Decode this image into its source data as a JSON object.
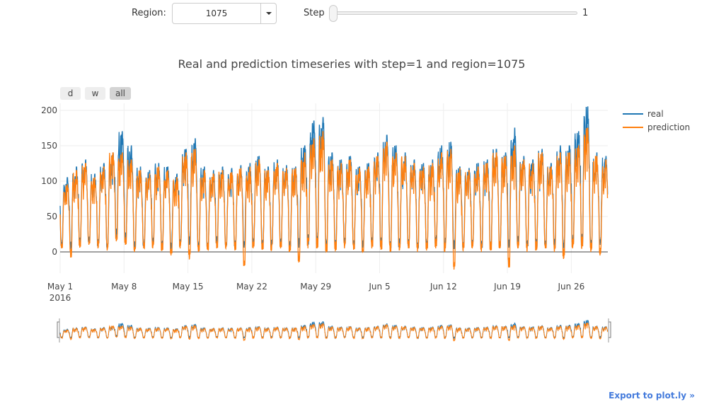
{
  "controls": {
    "region_label": "Region:",
    "region_value": "1075",
    "step_label": "Step",
    "step_value": "1"
  },
  "range_selector": {
    "buttons": [
      "d",
      "w",
      "all"
    ],
    "active": "all"
  },
  "export_link": "Export to plot.ly »",
  "colors": {
    "real": "#1f77b4",
    "prediction": "#ff7f0e",
    "grid": "#eeeeee",
    "zero_line": "#444444"
  },
  "chart_data": {
    "type": "line",
    "title": "Real and prediction timeseries with step=1 and region=1075",
    "x_range": [
      "2016-05-01",
      "2016-06-30"
    ],
    "ylim": [
      -30,
      210
    ],
    "y_ticks": [
      0,
      50,
      100,
      150,
      200
    ],
    "x_ticks": [
      {
        "date": "2016-05-01",
        "label": "May 1",
        "sublabel": "2016"
      },
      {
        "date": "2016-05-08",
        "label": "May 8"
      },
      {
        "date": "2016-05-15",
        "label": "May 15"
      },
      {
        "date": "2016-05-22",
        "label": "May 22"
      },
      {
        "date": "2016-05-29",
        "label": "May 29"
      },
      {
        "date": "2016-06-05",
        "label": "Jun 5"
      },
      {
        "date": "2016-06-12",
        "label": "Jun 12"
      },
      {
        "date": "2016-06-19",
        "label": "Jun 19"
      },
      {
        "date": "2016-06-26",
        "label": "Jun 26"
      }
    ],
    "legend_position": "top-right",
    "grid": true,
    "series": [
      {
        "name": "real",
        "color": "#1f77b4"
      },
      {
        "name": "prediction",
        "color": "#ff7f0e"
      }
    ],
    "daily_values": {
      "dates": [
        "2016-05-01",
        "2016-05-02",
        "2016-05-03",
        "2016-05-04",
        "2016-05-05",
        "2016-05-06",
        "2016-05-07",
        "2016-05-08",
        "2016-05-09",
        "2016-05-10",
        "2016-05-11",
        "2016-05-12",
        "2016-05-13",
        "2016-05-14",
        "2016-05-15",
        "2016-05-16",
        "2016-05-17",
        "2016-05-18",
        "2016-05-19",
        "2016-05-20",
        "2016-05-21",
        "2016-05-22",
        "2016-05-23",
        "2016-05-24",
        "2016-05-25",
        "2016-05-26",
        "2016-05-27",
        "2016-05-28",
        "2016-05-29",
        "2016-05-30",
        "2016-05-31",
        "2016-06-01",
        "2016-06-02",
        "2016-06-03",
        "2016-06-04",
        "2016-06-05",
        "2016-06-06",
        "2016-06-07",
        "2016-06-08",
        "2016-06-09",
        "2016-06-10",
        "2016-06-11",
        "2016-06-12",
        "2016-06-13",
        "2016-06-14",
        "2016-06-15",
        "2016-06-16",
        "2016-06-17",
        "2016-06-18",
        "2016-06-19",
        "2016-06-20",
        "2016-06-21",
        "2016-06-22",
        "2016-06-23",
        "2016-06-24",
        "2016-06-25",
        "2016-06-26",
        "2016-06-27",
        "2016-06-28",
        "2016-06-29"
      ],
      "real_min": [
        8,
        5,
        10,
        12,
        8,
        5,
        20,
        15,
        5,
        8,
        10,
        6,
        4,
        8,
        10,
        5,
        6,
        12,
        8,
        5,
        6,
        10,
        8,
        6,
        8,
        5,
        6,
        8,
        10,
        6,
        5,
        12,
        8,
        6,
        10,
        8,
        5,
        6,
        8,
        5,
        6,
        10,
        5,
        4,
        6,
        8,
        5,
        6,
        8,
        6,
        10,
        5,
        6,
        8,
        5,
        6,
        10,
        8,
        6,
        10
      ],
      "real_max": [
        105,
        120,
        130,
        110,
        125,
        140,
        170,
        150,
        120,
        115,
        125,
        120,
        110,
        145,
        160,
        120,
        115,
        120,
        118,
        122,
        125,
        135,
        120,
        130,
        122,
        120,
        150,
        185,
        190,
        140,
        130,
        135,
        120,
        125,
        140,
        165,
        150,
        140,
        130,
        125,
        130,
        150,
        155,
        120,
        118,
        125,
        130,
        145,
        140,
        175,
        135,
        130,
        145,
        125,
        150,
        150,
        170,
        205,
        140,
        135
      ],
      "pred_min": [
        5,
        -8,
        6,
        10,
        5,
        2,
        15,
        10,
        0,
        5,
        5,
        2,
        -5,
        5,
        -10,
        0,
        3,
        5,
        5,
        2,
        -20,
        5,
        3,
        2,
        5,
        0,
        -15,
        5,
        5,
        0,
        2,
        5,
        3,
        0,
        5,
        3,
        0,
        2,
        5,
        0,
        2,
        5,
        0,
        -25,
        2,
        5,
        0,
        2,
        5,
        -22,
        5,
        0,
        2,
        5,
        0,
        -10,
        5,
        5,
        0,
        -5
      ],
      "pred_max": [
        95,
        115,
        125,
        105,
        120,
        140,
        140,
        130,
        115,
        110,
        120,
        115,
        105,
        140,
        145,
        115,
        110,
        115,
        112,
        118,
        120,
        130,
        115,
        125,
        118,
        118,
        140,
        160,
        170,
        130,
        125,
        130,
        118,
        120,
        135,
        155,
        140,
        135,
        125,
        120,
        125,
        140,
        145,
        118,
        115,
        120,
        125,
        140,
        135,
        150,
        130,
        125,
        140,
        120,
        140,
        140,
        150,
        175,
        135,
        130
      ]
    }
  }
}
